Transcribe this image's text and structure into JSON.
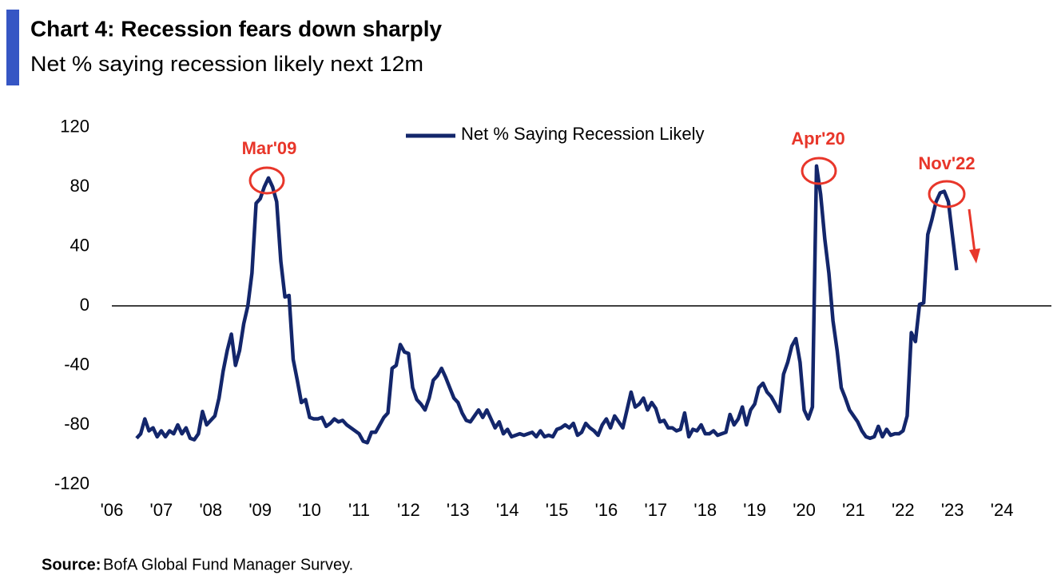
{
  "chart_data": {
    "type": "line",
    "title": "Chart 4: Recession fears down sharply",
    "subtitle": "Net % saying recession likely next 12m",
    "source_label": "Source:",
    "source": "BofA Global Fund Manager Survey.",
    "annotations": [
      "Mar'09",
      "Apr'20",
      "Nov'22"
    ],
    "xlim": [
      2006,
      2025
    ],
    "xticks": [
      {
        "value": 2006,
        "label": "'06"
      },
      {
        "value": 2007,
        "label": "'07"
      },
      {
        "value": 2008,
        "label": "'08"
      },
      {
        "value": 2009,
        "label": "'09"
      },
      {
        "value": 2010,
        "label": "'10"
      },
      {
        "value": 2011,
        "label": "'11"
      },
      {
        "value": 2012,
        "label": "'12"
      },
      {
        "value": 2013,
        "label": "'13"
      },
      {
        "value": 2014,
        "label": "'14"
      },
      {
        "value": 2015,
        "label": "'15"
      },
      {
        "value": 2016,
        "label": "'16"
      },
      {
        "value": 2017,
        "label": "'17"
      },
      {
        "value": 2018,
        "label": "'18"
      },
      {
        "value": 2019,
        "label": "'19"
      },
      {
        "value": 2020,
        "label": "'20"
      },
      {
        "value": 2021,
        "label": "'21"
      },
      {
        "value": 2022,
        "label": "'22"
      },
      {
        "value": 2023,
        "label": "'23"
      },
      {
        "value": 2024,
        "label": "'24"
      }
    ],
    "ylim": [
      -120,
      120
    ],
    "yticks": [
      -120,
      -80,
      -40,
      0,
      40,
      80,
      120
    ],
    "zero_line": true,
    "x": [
      2006.5,
      2006.583,
      2006.667,
      2006.75,
      2006.833,
      2006.917,
      2007,
      2007.083,
      2007.167,
      2007.25,
      2007.333,
      2007.417,
      2007.5,
      2007.583,
      2007.667,
      2007.75,
      2007.833,
      2007.917,
      2008,
      2008.083,
      2008.167,
      2008.25,
      2008.333,
      2008.417,
      2008.5,
      2008.583,
      2008.667,
      2008.75,
      2008.833,
      2008.917,
      2009,
      2009.083,
      2009.167,
      2009.25,
      2009.333,
      2009.417,
      2009.5,
      2009.583,
      2009.667,
      2009.75,
      2009.833,
      2009.917,
      2010,
      2010.083,
      2010.167,
      2010.25,
      2010.333,
      2010.417,
      2010.5,
      2010.583,
      2010.667,
      2010.75,
      2010.833,
      2010.917,
      2011,
      2011.083,
      2011.167,
      2011.25,
      2011.333,
      2011.417,
      2011.5,
      2011.583,
      2011.667,
      2011.75,
      2011.833,
      2011.917,
      2012,
      2012.083,
      2012.167,
      2012.25,
      2012.333,
      2012.417,
      2012.5,
      2012.583,
      2012.667,
      2012.75,
      2012.833,
      2012.917,
      2013,
      2013.083,
      2013.167,
      2013.25,
      2013.333,
      2013.417,
      2013.5,
      2013.583,
      2013.667,
      2013.75,
      2013.833,
      2013.917,
      2014,
      2014.083,
      2014.167,
      2014.25,
      2014.333,
      2014.417,
      2014.5,
      2014.583,
      2014.667,
      2014.75,
      2014.833,
      2014.917,
      2015,
      2015.083,
      2015.167,
      2015.25,
      2015.333,
      2015.417,
      2015.5,
      2015.583,
      2015.667,
      2015.75,
      2015.833,
      2015.917,
      2016,
      2016.083,
      2016.167,
      2016.25,
      2016.333,
      2016.417,
      2016.5,
      2016.583,
      2016.667,
      2016.75,
      2016.833,
      2016.917,
      2017,
      2017.083,
      2017.167,
      2017.25,
      2017.333,
      2017.417,
      2017.5,
      2017.583,
      2017.667,
      2017.75,
      2017.833,
      2017.917,
      2018,
      2018.083,
      2018.167,
      2018.25,
      2018.333,
      2018.417,
      2018.5,
      2018.583,
      2018.667,
      2018.75,
      2018.833,
      2018.917,
      2019,
      2019.083,
      2019.167,
      2019.25,
      2019.333,
      2019.417,
      2019.5,
      2019.583,
      2019.667,
      2019.75,
      2019.833,
      2019.917,
      2020,
      2020.083,
      2020.167,
      2020.25,
      2020.333,
      2020.417,
      2020.5,
      2020.583,
      2020.667,
      2020.75,
      2020.833,
      2020.917,
      2021,
      2021.083,
      2021.167,
      2021.25,
      2021.333,
      2021.417,
      2021.5,
      2021.583,
      2021.667,
      2021.75,
      2021.833,
      2021.917,
      2022,
      2022.083,
      2022.167,
      2022.25,
      2022.333,
      2022.417,
      2022.5,
      2022.583,
      2022.667,
      2022.75,
      2022.833,
      2022.917,
      2023,
      2023.083
    ],
    "series": [
      {
        "name": "Net % Saying Recession Likely",
        "color": "#13266b",
        "values": [
          -89,
          -86,
          -76,
          -84,
          -82,
          -88,
          -84,
          -88,
          -84,
          -86,
          -80,
          -86,
          -82,
          -89,
          -90,
          -86,
          -71,
          -80,
          -77,
          -74,
          -62,
          -44,
          -30,
          -19,
          -40,
          -30,
          -12,
          0,
          22,
          69,
          72,
          80,
          86,
          80,
          70,
          30,
          6,
          7,
          -36,
          -50,
          -65,
          -63,
          -75,
          -76,
          -76,
          -75,
          -81,
          -79,
          -76,
          -78,
          -77,
          -80,
          -82,
          -84,
          -86,
          -91,
          -92,
          -85,
          -85,
          -80,
          -75,
          -72,
          -42,
          -40,
          -26,
          -31,
          -32,
          -55,
          -63,
          -66,
          -70,
          -62,
          -50,
          -47,
          -42,
          -48,
          -55,
          -62,
          -65,
          -72,
          -77,
          -78,
          -74,
          -70,
          -75,
          -70,
          -76,
          -82,
          -78,
          -86,
          -83,
          -88,
          -87,
          -86,
          -87,
          -86,
          -85,
          -88,
          -84,
          -88,
          -87,
          -88,
          -83,
          -82,
          -80,
          -82,
          -79,
          -87,
          -85,
          -79,
          -82,
          -84,
          -87,
          -80,
          -76,
          -82,
          -74,
          -78,
          -82,
          -70,
          -58,
          -68,
          -66,
          -62,
          -70,
          -65,
          -69,
          -78,
          -77,
          -82,
          -82,
          -84,
          -83,
          -72,
          -88,
          -83,
          -84,
          -80,
          -86,
          -86,
          -84,
          -87,
          -86,
          -85,
          -73,
          -80,
          -76,
          -68,
          -80,
          -70,
          -66,
          -55,
          -52,
          -58,
          -61,
          -66,
          -71,
          -46,
          -38,
          -27,
          -22,
          -38,
          -70,
          -76,
          -68,
          94,
          75,
          45,
          22,
          -10,
          -30,
          -55,
          -62,
          -70,
          -74,
          -78,
          -84,
          -88,
          -89,
          -88,
          -81,
          -88,
          -83,
          -87,
          -86,
          -86,
          -84,
          -74,
          -18,
          -24,
          1,
          2,
          48,
          58,
          70,
          76,
          77,
          70,
          47,
          24
        ]
      }
    ]
  }
}
